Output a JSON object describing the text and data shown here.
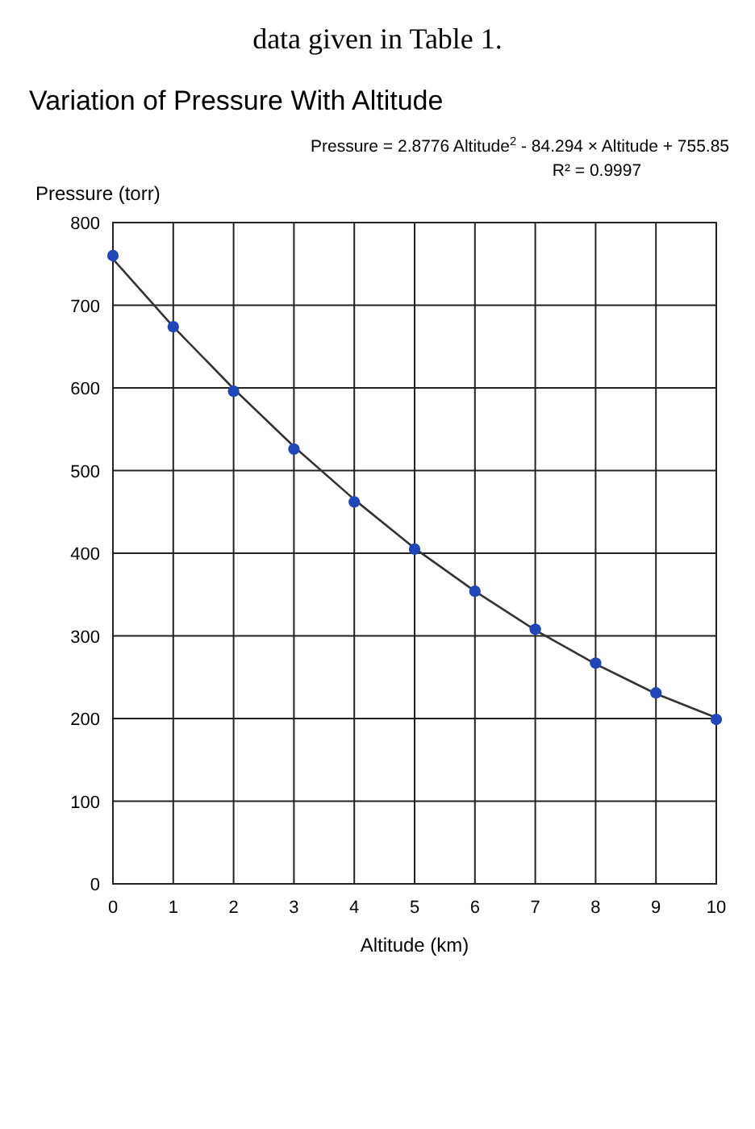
{
  "chart_data": {
    "type": "scatter",
    "title": "Variation of Pressure With Altitude",
    "xlabel": "Altitude (km)",
    "ylabel": "Pressure (torr)",
    "annotations": [
      "data given in Table 1.",
      "Pressure = 2.8776 Altitude$^{2}$ - 84.294 × Altitude + 755.85",
      "R² = 0.9997"
    ],
    "xlim": [
      0,
      10
    ],
    "xticks": [
      0,
      1,
      2,
      3,
      4,
      5,
      6,
      7,
      8,
      9,
      10
    ],
    "ylim": [
      0,
      800
    ],
    "yticks": [
      0,
      100,
      200,
      300,
      400,
      500,
      600,
      700,
      800
    ],
    "grid": true,
    "series": [
      {
        "type": "line",
        "color": "#333333",
        "marker": "none",
        "x": [
          0,
          1,
          2,
          3,
          4,
          5,
          6,
          7,
          8,
          9,
          10
        ],
        "values": [
          756,
          674,
          599,
          529,
          465,
          406,
          354,
          307,
          266,
          230,
          201
        ]
      },
      {
        "color": "#1f47b8",
        "marker": "circle",
        "x": [
          0,
          1,
          2,
          3,
          4,
          5,
          6,
          7,
          8,
          9,
          10
        ],
        "values": [
          760,
          674,
          596,
          526,
          462,
          405,
          354,
          308,
          267,
          231,
          199
        ]
      }
    ]
  }
}
